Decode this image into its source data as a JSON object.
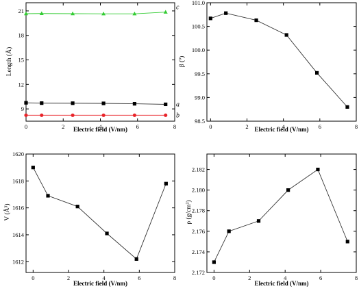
{
  "chart_data": [
    {
      "id": "length",
      "type": "line",
      "xlabel": "Electric field (V/nm)",
      "ylabel": "Length (Å)",
      "xlim": [
        0,
        8
      ],
      "ylim": [
        7.5,
        22
      ],
      "xticks": [
        0,
        2,
        4,
        6,
        8
      ],
      "yticks": [
        9,
        12,
        15,
        18,
        21
      ],
      "x": [
        0,
        0.84,
        2.51,
        4.17,
        5.84,
        7.51
      ],
      "series": [
        {
          "name": "a",
          "color": "#000000",
          "marker": "square",
          "values": [
            9.75,
            9.71,
            9.7,
            9.68,
            9.63,
            9.56
          ]
        },
        {
          "name": "b",
          "color": "#e8242a",
          "marker": "circle",
          "values": [
            8.23,
            8.23,
            8.23,
            8.23,
            8.23,
            8.23
          ]
        },
        {
          "name": "c",
          "color": "#33cc33",
          "marker": "triangle",
          "values": [
            20.66,
            20.68,
            20.66,
            20.64,
            20.64,
            20.85
          ]
        }
      ]
    },
    {
      "id": "beta",
      "type": "line",
      "xlabel": "Electric field (V/nm)",
      "ylabel": "β (º)",
      "xlim": [
        -0.2,
        8
      ],
      "ylim": [
        98.5,
        101.0
      ],
      "xticks": [
        0,
        2,
        4,
        6,
        8
      ],
      "yticks": [
        98.5,
        99.0,
        99.5,
        100.0,
        100.5,
        101.0
      ],
      "ytick_labels": [
        "98.5",
        "99.0",
        "99.5",
        "100.0",
        "100.5",
        "101.0"
      ],
      "x": [
        0,
        0.84,
        2.51,
        4.17,
        5.84,
        7.51
      ],
      "series": [
        {
          "color": "#000000",
          "marker": "square",
          "values": [
            100.67,
            100.78,
            100.63,
            100.32,
            99.52,
            98.8
          ]
        }
      ]
    },
    {
      "id": "volume",
      "type": "line",
      "xlabel": "Electric field (V/nm)",
      "ylabel": "V (Å³)",
      "xlim": [
        -0.4,
        8
      ],
      "ylim": [
        1611.2,
        1620
      ],
      "xticks": [
        0,
        2,
        4,
        6,
        8
      ],
      "yticks": [
        1612,
        1614,
        1616,
        1618,
        1620
      ],
      "x": [
        0,
        0.84,
        2.51,
        4.17,
        5.84,
        7.51
      ],
      "series": [
        {
          "color": "#000000",
          "marker": "square",
          "values": [
            1619.0,
            1616.9,
            1616.1,
            1614.1,
            1612.2,
            1617.8
          ]
        }
      ]
    },
    {
      "id": "density",
      "type": "line",
      "xlabel": "Electric field (V/nm)",
      "ylabel": "ρ (g/cm³)",
      "xlim": [
        -0.4,
        8
      ],
      "ylim": [
        2.172,
        2.1835
      ],
      "xticks": [
        0,
        2,
        4,
        6,
        8
      ],
      "yticks": [
        2.172,
        2.174,
        2.176,
        2.178,
        2.18,
        2.182
      ],
      "ytick_labels": [
        "2.172",
        "2.174",
        "2.176",
        "2.178",
        "2.180",
        "2.182"
      ],
      "x": [
        0,
        0.84,
        2.51,
        4.17,
        5.84,
        7.51
      ],
      "series": [
        {
          "color": "#000000",
          "marker": "square",
          "values": [
            2.173,
            2.176,
            2.177,
            2.18,
            2.182,
            2.175
          ]
        }
      ]
    }
  ]
}
